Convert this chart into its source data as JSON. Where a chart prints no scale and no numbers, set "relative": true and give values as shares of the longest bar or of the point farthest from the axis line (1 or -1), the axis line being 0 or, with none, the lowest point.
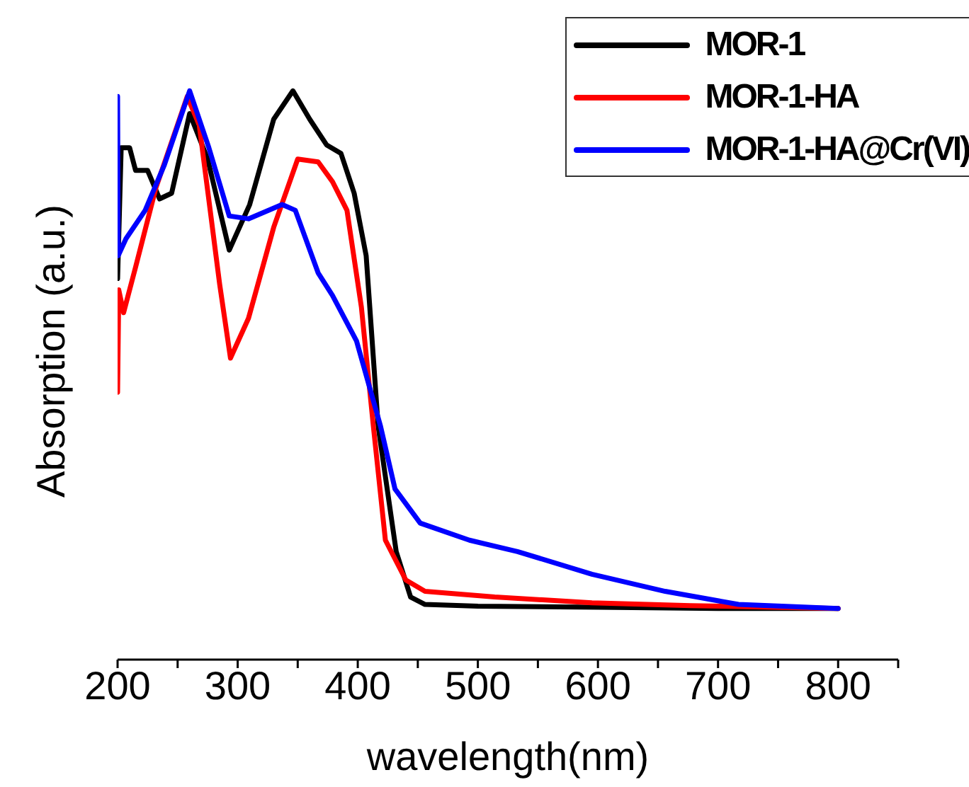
{
  "chart_data": {
    "type": "line",
    "xlabel": "wavelength(nm)",
    "ylabel": "Absorption (a.u.)",
    "relative": true,
    "legend": "top right",
    "xlim": [
      200,
      850
    ],
    "xticks": [
      200,
      {
        "value": 250,
        "label": null
      },
      300,
      {
        "value": 350,
        "label": null
      },
      400,
      {
        "value": 450,
        "label": null
      },
      500,
      {
        "value": 550,
        "label": null
      },
      600,
      {
        "value": 650,
        "label": null
      },
      700,
      {
        "value": 750,
        "label": null
      },
      800,
      {
        "value": 850,
        "label": null
      }
    ],
    "series": [
      {
        "name": "MOR-1",
        "color": "#000000",
        "x": [
          200,
          203,
          210,
          215,
          225,
          235,
          245,
          260,
          275,
          293,
          310,
          330,
          346,
          360,
          374,
          386,
          397,
          407,
          417,
          432,
          444,
          456,
          500,
          600,
          700,
          800
        ],
        "values": [
          0.67,
          0.9,
          0.9,
          0.86,
          0.86,
          0.81,
          0.82,
          0.96,
          0.88,
          0.72,
          0.8,
          0.95,
          1.0,
          0.95,
          0.905,
          0.89,
          0.82,
          0.71,
          0.41,
          0.19,
          0.11,
          0.097,
          0.094,
          0.092,
          0.09,
          0.09
        ]
      },
      {
        "name": "MOR-1-HA",
        "color": "#ff0000",
        "x": [
          200,
          201,
          205,
          215,
          232,
          258,
          268,
          285,
          294,
          309,
          330,
          350,
          367,
          379,
          391,
          403,
          413,
          423,
          440,
          456,
          514,
          595,
          677,
          800
        ],
        "values": [
          0.47,
          0.65,
          0.61,
          0.69,
          0.83,
          0.99,
          0.94,
          0.66,
          0.53,
          0.6,
          0.76,
          0.88,
          0.875,
          0.84,
          0.79,
          0.62,
          0.41,
          0.21,
          0.14,
          0.12,
          0.11,
          0.1,
          0.095,
          0.09
        ]
      },
      {
        "name": "MOR-1-HA@Cr(VI)",
        "color": "#0000ff",
        "x": [
          200,
          200.5,
          207,
          223,
          239,
          260,
          276,
          293,
          309,
          337,
          348,
          367,
          379,
          399,
          419,
          431,
          452,
          493,
          533,
          595,
          656,
          717,
          800
        ],
        "values": [
          0.99,
          0.71,
          0.74,
          0.79,
          0.87,
          1.0,
          0.9,
          0.78,
          0.775,
          0.8,
          0.79,
          0.68,
          0.64,
          0.56,
          0.41,
          0.3,
          0.24,
          0.21,
          0.19,
          0.15,
          0.12,
          0.097,
          0.09
        ]
      }
    ]
  }
}
